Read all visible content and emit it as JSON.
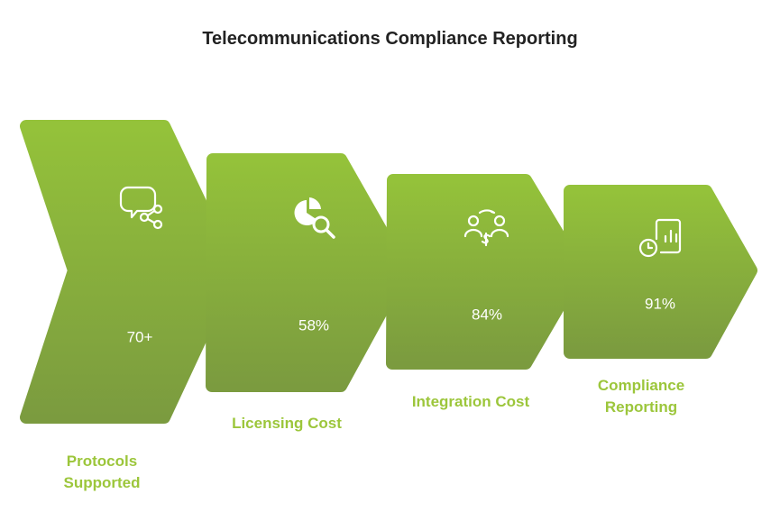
{
  "title": "Telecommunications Compliance Reporting",
  "steps": [
    {
      "value": "70+",
      "label": "Protocols Supported"
    },
    {
      "value": "58%",
      "label": "Licensing Cost"
    },
    {
      "value": "84%",
      "label": "Integration Cost"
    },
    {
      "value": "91%",
      "label": "Compliance Reporting"
    }
  ]
}
